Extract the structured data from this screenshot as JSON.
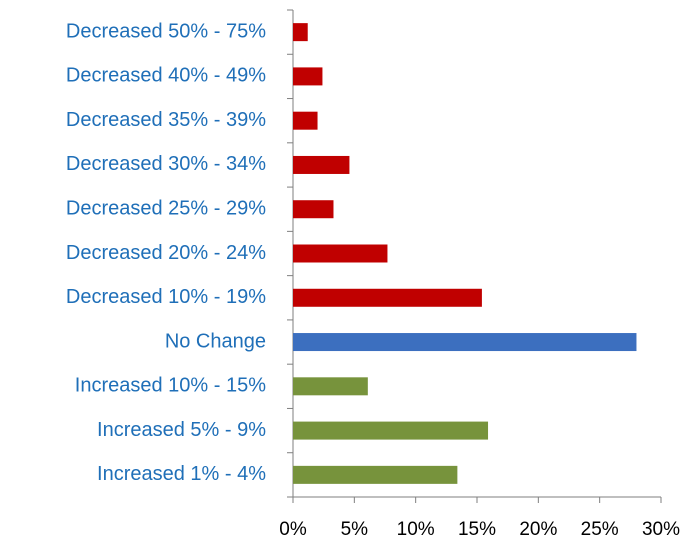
{
  "chart_data": {
    "type": "barh",
    "categories": [
      "Decreased 50% - 75%",
      "Decreased 40% - 49%",
      "Decreased 35% - 39%",
      "Decreased 30% - 34%",
      "Decreased 25% - 29%",
      "Decreased 20% - 24%",
      "Decreased 10% - 19%",
      "No Change",
      "Increased 10% - 15%",
      "Increased 5% - 9%",
      "Increased 1% - 4%"
    ],
    "values": [
      1.2,
      2.4,
      2.0,
      4.6,
      3.3,
      7.7,
      15.4,
      28.0,
      6.1,
      15.9,
      13.4
    ],
    "colors": [
      "#c00000",
      "#c00000",
      "#c00000",
      "#c00000",
      "#c00000",
      "#c00000",
      "#c00000",
      "#3c6fbf",
      "#77933c",
      "#77933c",
      "#77933c"
    ],
    "xlim": [
      0,
      30
    ],
    "xticks": [
      {
        "value": 0,
        "label": "0%"
      },
      {
        "value": 5,
        "label": "5%"
      },
      {
        "value": 10,
        "label": "10%"
      },
      {
        "value": 15,
        "label": "15%"
      },
      {
        "value": 20,
        "label": "20%"
      },
      {
        "value": 25,
        "label": "25%"
      },
      {
        "value": 30,
        "label": "30%"
      }
    ],
    "grid": false
  }
}
